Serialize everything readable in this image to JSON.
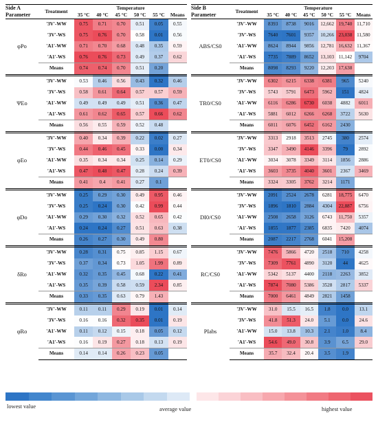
{
  "sideA": {
    "side_label": "Side A",
    "param_header": "Parameter",
    "treatment_header": "Treatment",
    "temp_header": "Temperature",
    "temps": [
      "35 °C",
      "40 °C",
      "45 °C",
      "50 °C",
      "55 °C",
      "Means"
    ],
    "groups": [
      {
        "param": "φPo",
        "rows": [
          {
            "t": "'3V'-WW",
            "v": [
              "0.75",
              "0.71",
              "0.70",
              "0.51",
              "0.05",
              "0.55"
            ]
          },
          {
            "t": "'3V'-WS",
            "v": [
              "0.75",
              "0.76",
              "0.70",
              "0.58",
              "0.01",
              "0.56"
            ]
          },
          {
            "t": "'A1'-WW",
            "v": [
              "0.71",
              "0.70",
              "0.68",
              "0.48",
              "0.35",
              "0.59"
            ]
          },
          {
            "t": "'A1'-WS",
            "v": [
              "0.76",
              "0.76",
              "0.73",
              "0.49",
              "0.37",
              "0.62"
            ]
          },
          {
            "t": "Means",
            "v": [
              "0.74",
              "0.74",
              "0.70",
              "0.51",
              "0.20",
              ""
            ]
          }
        ]
      },
      {
        "param": "ΨEo",
        "rows": [
          {
            "t": "'3V'-WW",
            "v": [
              "0.53",
              "0.46",
              "0.56",
              "0.43",
              "0.32",
              "0.46"
            ]
          },
          {
            "t": "'3V'-WS",
            "v": [
              "0.58",
              "0.61",
              "0.64",
              "0.57",
              "0.57",
              "0.59"
            ]
          },
          {
            "t": "'A1'-WW",
            "v": [
              "0.49",
              "0.49",
              "0.49",
              "0.51",
              "0.36",
              "0.47"
            ]
          },
          {
            "t": "'A1'-WS",
            "v": [
              "0.61",
              "0.62",
              "0.65",
              "0.57",
              "0.66",
              "0.62"
            ]
          },
          {
            "t": "Means",
            "v": [
              "0.56",
              "0.55",
              "0.59",
              "0.52",
              "0.48",
              ""
            ]
          }
        ]
      },
      {
        "param": "φEo",
        "rows": [
          {
            "t": "'3V'-WW",
            "v": [
              "0.40",
              "0.34",
              "0.39",
              "0.22",
              "0.02",
              "0.27"
            ]
          },
          {
            "t": "'3V'-WS",
            "v": [
              "0.44",
              "0.46",
              "0.45",
              "0.33",
              "0.00",
              "0.34"
            ]
          },
          {
            "t": "'A1'-WW",
            "v": [
              "0.35",
              "0.34",
              "0.34",
              "0.25",
              "0.14",
              "0.29"
            ]
          },
          {
            "t": "'A1'-WS",
            "v": [
              "0.47",
              "0.48",
              "0.47",
              "0.28",
              "0.24",
              "0.39"
            ]
          },
          {
            "t": "Means",
            "v": [
              "0.41",
              "0.4",
              "0.41",
              "0.27",
              "0.1",
              ""
            ]
          }
        ]
      },
      {
        "param": "φDo",
        "rows": [
          {
            "t": "'3V'-WW",
            "v": [
              "0.25",
              "0.29",
              "0.30",
              "0.49",
              "0.95",
              "0.46"
            ]
          },
          {
            "t": "'3V'-WS",
            "v": [
              "0.25",
              "0.24",
              "0.30",
              "0.42",
              "0.99",
              "0.44"
            ]
          },
          {
            "t": "'A1'-WW",
            "v": [
              "0.29",
              "0.30",
              "0.32",
              "0.52",
              "0.65",
              "0.42"
            ]
          },
          {
            "t": "'A1'-WS",
            "v": [
              "0.24",
              "0.24",
              "0.27",
              "0.51",
              "0.63",
              "0.38"
            ]
          },
          {
            "t": "Means",
            "v": [
              "0.26",
              "0.27",
              "0.30",
              "0.49",
              "0.80",
              ""
            ]
          }
        ]
      },
      {
        "param": "δRo",
        "rows": [
          {
            "t": "'3V'-WW",
            "v": [
              "0.28",
              "0.31",
              "0.75",
              "0.85",
              "1.15",
              "0.67"
            ]
          },
          {
            "t": "'3V'-WS",
            "v": [
              "0.37",
              "0.34",
              "0.73",
              "1.05",
              "1.99",
              "0.89"
            ]
          },
          {
            "t": "'A1'-WW",
            "v": [
              "0.32",
              "0.35",
              "0.45",
              "0.68",
              "0.22",
              "0.41"
            ]
          },
          {
            "t": "'A1'-WS",
            "v": [
              "0.35",
              "0.39",
              "0.58",
              "0.59",
              "2.34",
              "0.85"
            ]
          },
          {
            "t": "Means",
            "v": [
              "0.33",
              "0.35",
              "0.63",
              "0.79",
              "1.43",
              ""
            ]
          }
        ]
      },
      {
        "param": "φRo",
        "rows": [
          {
            "t": "'3V'-WW",
            "v": [
              "0.11",
              "0.11",
              "0.29",
              "0.19",
              "0.01",
              "0.14"
            ]
          },
          {
            "t": "'3V'-WS",
            "v": [
              "0.16",
              "0.16",
              "0.32",
              "0.35",
              "0.01",
              "0.19"
            ]
          },
          {
            "t": "'A1'-WW",
            "v": [
              "0.11",
              "0.12",
              "0.15",
              "0.18",
              "0.05",
              "0.12"
            ]
          },
          {
            "t": "'A1'-WS",
            "v": [
              "0.16",
              "0.19",
              "0.27",
              "0.18",
              "0.13",
              "0.19"
            ]
          },
          {
            "t": "Means",
            "v": [
              "0.14",
              "0.14",
              "0.26",
              "0.23",
              "0.05",
              ""
            ]
          }
        ]
      }
    ]
  },
  "sideB": {
    "side_label": "Side B",
    "param_header": "Parameter",
    "treatment_header": "Treatment",
    "temp_header": "Temperature",
    "temps": [
      "35 °C",
      "40 °C",
      "45 °C",
      "50 °C",
      "55 °C",
      "Means"
    ],
    "groups": [
      {
        "param": "ABS/CS0",
        "rows": [
          {
            "t": "'3V'-WW",
            "v": [
              "8393",
              "8738",
              "9016",
              "12,662",
              "19,740",
              "11,710"
            ]
          },
          {
            "t": "'3V'-WS",
            "v": [
              "7640",
              "7601",
              "9357",
              "10,266",
              "23,038",
              "11,580"
            ]
          },
          {
            "t": "'A1'-WW",
            "v": [
              "8624",
              "8944",
              "9856",
              "12,781",
              "16,632",
              "11,367"
            ]
          },
          {
            "t": "'A1'-WS",
            "v": [
              "7735",
              "7889",
              "8652",
              "13,103",
              "11,142",
              "9704"
            ]
          },
          {
            "t": "Means",
            "v": [
              "8098",
              "8293",
              "9220",
              "12,203",
              "17,638",
              ""
            ]
          }
        ]
      },
      {
        "param": "TR0/CS0",
        "rows": [
          {
            "t": "'3V'-WW",
            "v": [
              "6302",
              "6215",
              "6338",
              "6381",
              "965",
              "5240"
            ]
          },
          {
            "t": "'3V'-WS",
            "v": [
              "5743",
              "5791",
              "6473",
              "5962",
              "151",
              "4824"
            ]
          },
          {
            "t": "'A1'-WW",
            "v": [
              "6116",
              "6286",
              "6730",
              "6038",
              "4882",
              "6011"
            ]
          },
          {
            "t": "'A1'-WS",
            "v": [
              "5881",
              "6012",
              "6266",
              "6268",
              "3722",
              "5630"
            ]
          },
          {
            "t": "Means",
            "v": [
              "6011",
              "6076",
              "6452",
              "6162",
              "2430",
              ""
            ]
          }
        ]
      },
      {
        "param": "ET0/CS0",
        "rows": [
          {
            "t": "'3V'-WW",
            "v": [
              "3313",
              "2918",
              "3513",
              "2745",
              "380",
              "2574"
            ]
          },
          {
            "t": "'3V'-WS",
            "v": [
              "3347",
              "3490",
              "4146",
              "3396",
              "79",
              "2892"
            ]
          },
          {
            "t": "'A1'-WW",
            "v": [
              "3034",
              "3078",
              "3349",
              "3114",
              "1856",
              "2886"
            ]
          },
          {
            "t": "'A1'-WS",
            "v": [
              "3603",
              "3735",
              "4040",
              "3601",
              "2367",
              "3469"
            ]
          },
          {
            "t": "Means",
            "v": [
              "3324",
              "3305",
              "3762",
              "3214",
              "1171",
              ""
            ]
          }
        ]
      },
      {
        "param": "DI0/CS0",
        "rows": [
          {
            "t": "'3V'-WW",
            "v": [
              "2091",
              "2524",
              "2678",
              "6281",
              "18,775",
              "6470"
            ]
          },
          {
            "t": "'3V'-WS",
            "v": [
              "1896",
              "1810",
              "2884",
              "4304",
              "22,887",
              "6756"
            ]
          },
          {
            "t": "'A1'-WW",
            "v": [
              "2508",
              "2658",
              "3126",
              "6743",
              "11,750",
              "5357"
            ]
          },
          {
            "t": "'A1'-WS",
            "v": [
              "1855",
              "1877",
              "2385",
              "6835",
              "7420",
              "4074"
            ]
          },
          {
            "t": "Means",
            "v": [
              "2087",
              "2217",
              "2768",
              "6041",
              "15,208",
              ""
            ]
          }
        ]
      },
      {
        "param": "RC/CS0",
        "rows": [
          {
            "t": "'3V'-WW",
            "v": [
              "7476",
              "5866",
              "4720",
              "2518",
              "710",
              "4258"
            ]
          },
          {
            "t": "'3V'-WS",
            "v": [
              "7309",
              "7761",
              "4890",
              "3120",
              "44",
              "4625"
            ]
          },
          {
            "t": "'A1'-WW",
            "v": [
              "5342",
              "5137",
              "4400",
              "2118",
              "2263",
              "3852"
            ]
          },
          {
            "t": "'A1'-WS",
            "v": [
              "7874",
              "7080",
              "5386",
              "3528",
              "2817",
              "5337"
            ]
          },
          {
            "t": "Means",
            "v": [
              "7000",
              "6461",
              "4849",
              "2821",
              "1458",
              ""
            ]
          }
        ]
      },
      {
        "param": "PIabs",
        "rows": [
          {
            "t": "'3V'-WW",
            "v": [
              "31.0",
              "15.5",
              "16.5",
              "1.8",
              "0.0",
              "13.1"
            ]
          },
          {
            "t": "'3V'-WS",
            "v": [
              "41.8",
              "51.3",
              "24.0",
              "5.1",
              "0.0",
              "24.6"
            ]
          },
          {
            "t": "'A1'-WW",
            "v": [
              "15.0",
              "13.8",
              "10.3",
              "2.1",
              "1.0",
              "8.4"
            ]
          },
          {
            "t": "'A1'-WS",
            "v": [
              "54.6",
              "49.0",
              "30.8",
              "3.9",
              "6.5",
              "29.0"
            ]
          },
          {
            "t": "Means",
            "v": [
              "35.7",
              "32.4",
              "20.4",
              "3.5",
              "1.9",
              ""
            ]
          }
        ]
      }
    ]
  },
  "legend": {
    "low_label": "lowest value",
    "avg_label": "average value",
    "high_label": "highest value",
    "blue_steps": [
      "#2e75c5",
      "#4286cd",
      "#5a95d3",
      "#73a6da",
      "#8fb8e1",
      "#a9c9e8",
      "#c3d9ef",
      "#dde9f6"
    ],
    "red_steps": [
      "#fde6e8",
      "#fbd3d7",
      "#f9bec3",
      "#f7a8ae",
      "#f49299",
      "#f17b84",
      "#ee6670",
      "#eb5260"
    ]
  },
  "colors": {
    "low": "#2e75c5",
    "mid": "#ffffff",
    "high": "#eb4c5a"
  }
}
